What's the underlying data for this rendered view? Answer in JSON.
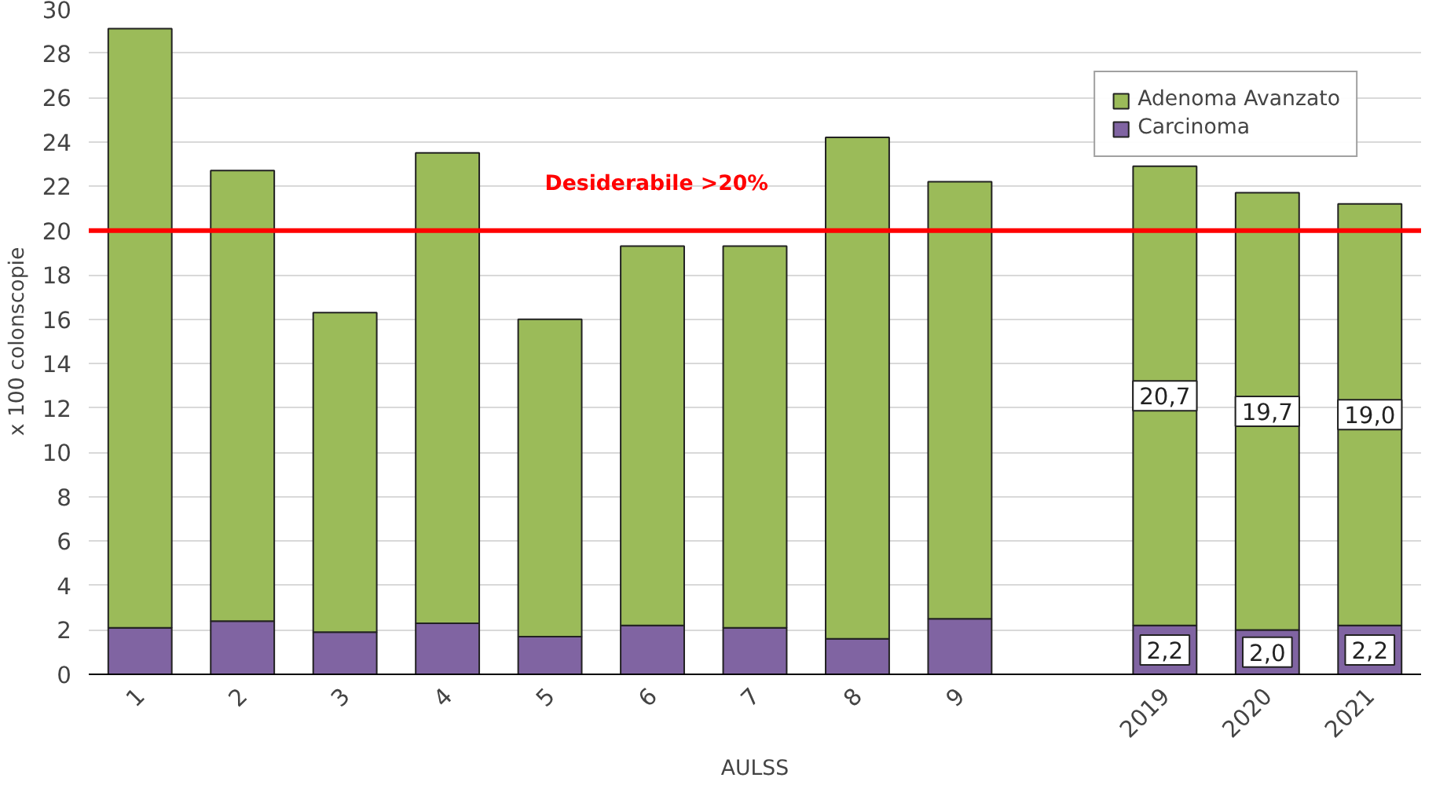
{
  "chart_data": {
    "type": "bar",
    "stacked": true,
    "xlabel": "AULSS",
    "ylabel": "x 100 colonscopie",
    "categories": [
      "1",
      "2",
      "3",
      "4",
      "5",
      "6",
      "7",
      "8",
      "9",
      null,
      "2019",
      "2020",
      "2021"
    ],
    "series": [
      {
        "name": "Carcinoma",
        "color": "#8064a2",
        "values": [
          2.1,
          2.4,
          1.9,
          2.3,
          1.7,
          2.2,
          2.1,
          1.6,
          2.5,
          null,
          2.2,
          2.0,
          2.2
        ],
        "value_labels": [
          null,
          null,
          null,
          null,
          null,
          null,
          null,
          null,
          null,
          null,
          "2,2",
          "2,0",
          "2,2"
        ]
      },
      {
        "name": "Adenoma Avanzato",
        "color": "#9bbb59",
        "values": [
          27.0,
          20.3,
          14.4,
          21.2,
          14.3,
          17.1,
          17.2,
          22.6,
          19.7,
          null,
          20.7,
          19.7,
          19.0
        ],
        "value_labels": [
          null,
          null,
          null,
          null,
          null,
          null,
          null,
          null,
          null,
          null,
          "20,7",
          "19,7",
          "19,0"
        ]
      }
    ],
    "ylim": [
      0,
      30
    ],
    "yticks": [
      0,
      2,
      4,
      6,
      8,
      10,
      12,
      14,
      16,
      18,
      20,
      22,
      24,
      26,
      28,
      30
    ],
    "grid": "y",
    "legend": "top right",
    "ref_lines": [
      {
        "axis": "y",
        "value": 20,
        "label": "Desiderabile >20%",
        "color": "#ff0000"
      }
    ]
  }
}
